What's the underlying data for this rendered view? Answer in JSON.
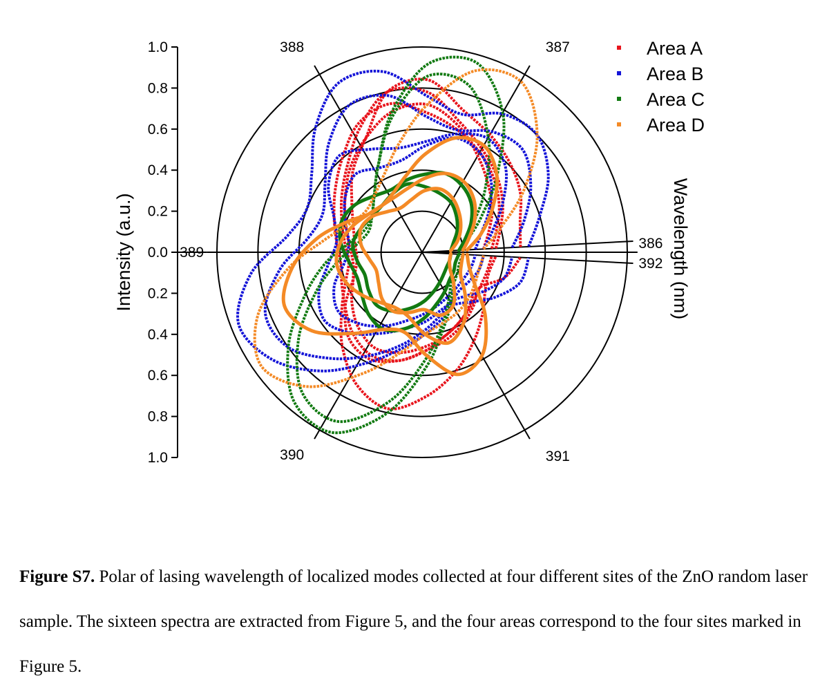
{
  "chart_data": {
    "type": "polar-line",
    "radial_axis": {
      "label": "Intensity (a.u.)",
      "range": [
        0,
        1.0
      ],
      "ticks": [
        "1.0",
        "0.8",
        "0.6",
        "0.4",
        "0.2",
        "0.0",
        "0.2",
        "0.4",
        "0.6",
        "0.8",
        "1.0"
      ],
      "rings": [
        0.2,
        0.4,
        0.6,
        0.8,
        1.0
      ]
    },
    "angular_axis": {
      "label": "Wavelength (nm)",
      "range_nm": [
        386,
        392
      ],
      "spokes": [
        {
          "label": "386",
          "angle_deg": 3
        },
        {
          "label": "387",
          "angle_deg": 60
        },
        {
          "label": "388",
          "angle_deg": 120
        },
        {
          "label": "389",
          "angle_deg": 180
        },
        {
          "label": "390",
          "angle_deg": 240
        },
        {
          "label": "391",
          "angle_deg": 300
        },
        {
          "label": "392",
          "angle_deg": 357
        }
      ]
    },
    "legend": {
      "placement": "top-right",
      "entries": [
        {
          "name": "Area A",
          "color": "#e8141c"
        },
        {
          "name": "Area B",
          "color": "#1414d8"
        },
        {
          "name": "Area C",
          "color": "#127a12"
        },
        {
          "name": "Area D",
          "color": "#f48a26"
        }
      ]
    },
    "series": [
      {
        "area": "Area A",
        "color": "#e8141c",
        "style": "dotted",
        "r": [
          0.48,
          0.5,
          0.56,
          0.61,
          0.66,
          0.72,
          0.84,
          0.8,
          0.62,
          0.52,
          0.42,
          0.36,
          0.33,
          0.32,
          0.36,
          0.46,
          0.55,
          0.58,
          0.54,
          0.48,
          0.44,
          0.4,
          0.36,
          0.33,
          0.42,
          0.48
        ]
      },
      {
        "area": "Area A",
        "color": "#e8141c",
        "style": "dotted",
        "r": [
          0.36,
          0.4,
          0.46,
          0.52,
          0.58,
          0.66,
          0.78,
          0.8,
          0.68,
          0.56,
          0.48,
          0.42,
          0.38,
          0.36,
          0.4,
          0.48,
          0.6,
          0.72,
          0.78,
          0.7,
          0.6,
          0.5,
          0.42,
          0.36,
          0.34,
          0.36
        ]
      },
      {
        "area": "Area A",
        "color": "#e8141c",
        "style": "dotted",
        "r": [
          0.3,
          0.34,
          0.4,
          0.46,
          0.54,
          0.64,
          0.72,
          0.7,
          0.62,
          0.54,
          0.46,
          0.4,
          0.36,
          0.34,
          0.36,
          0.42,
          0.48,
          0.52,
          0.5,
          0.46,
          0.42,
          0.38,
          0.34,
          0.3,
          0.29,
          0.3
        ]
      },
      {
        "area": "Area A",
        "color": "#e8141c",
        "style": "dotted",
        "r": [
          0.34,
          0.38,
          0.44,
          0.5,
          0.56,
          0.62,
          0.68,
          0.74,
          0.7,
          0.6,
          0.52,
          0.46,
          0.42,
          0.4,
          0.42,
          0.46,
          0.52,
          0.56,
          0.54,
          0.48,
          0.42,
          0.38,
          0.35,
          0.33,
          0.33,
          0.34
        ]
      },
      {
        "area": "Area B",
        "color": "#1414d8",
        "style": "dotted",
        "r": [
          0.52,
          0.6,
          0.72,
          0.8,
          0.78,
          0.7,
          0.76,
          0.9,
          0.92,
          0.8,
          0.66,
          0.6,
          0.66,
          0.84,
          0.96,
          0.9,
          0.76,
          0.6,
          0.48,
          0.4,
          0.34,
          0.3,
          0.34,
          0.42,
          0.5,
          0.52
        ]
      },
      {
        "area": "Area B",
        "color": "#1414d8",
        "style": "dotted",
        "r": [
          0.44,
          0.52,
          0.62,
          0.7,
          0.68,
          0.62,
          0.66,
          0.78,
          0.8,
          0.7,
          0.58,
          0.52,
          0.56,
          0.7,
          0.82,
          0.8,
          0.68,
          0.56,
          0.46,
          0.38,
          0.32,
          0.28,
          0.3,
          0.36,
          0.42,
          0.44
        ]
      },
      {
        "area": "Area B",
        "color": "#1414d8",
        "style": "dotted",
        "r": [
          0.3,
          0.36,
          0.46,
          0.58,
          0.64,
          0.6,
          0.54,
          0.52,
          0.56,
          0.62,
          0.56,
          0.46,
          0.42,
          0.46,
          0.54,
          0.58,
          0.52,
          0.44,
          0.38,
          0.34,
          0.3,
          0.28,
          0.26,
          0.27,
          0.29,
          0.3
        ]
      },
      {
        "area": "Area B",
        "color": "#1414d8",
        "style": "dotted",
        "r": [
          0.26,
          0.3,
          0.38,
          0.48,
          0.56,
          0.58,
          0.52,
          0.46,
          0.46,
          0.5,
          0.46,
          0.4,
          0.36,
          0.38,
          0.46,
          0.5,
          0.46,
          0.4,
          0.34,
          0.3,
          0.27,
          0.25,
          0.24,
          0.24,
          0.25,
          0.26
        ]
      },
      {
        "area": "Area C",
        "color": "#127a12",
        "style": "dotted",
        "r": [
          0.2,
          0.24,
          0.34,
          0.52,
          0.78,
          0.96,
          0.92,
          0.7,
          0.48,
          0.36,
          0.3,
          0.3,
          0.36,
          0.48,
          0.62,
          0.8,
          0.96,
          0.98,
          0.8,
          0.56,
          0.38,
          0.28,
          0.22,
          0.2,
          0.19,
          0.2
        ]
      },
      {
        "area": "Area C",
        "color": "#127a12",
        "style": "dotted",
        "r": [
          0.18,
          0.22,
          0.3,
          0.44,
          0.64,
          0.84,
          0.86,
          0.68,
          0.48,
          0.36,
          0.3,
          0.28,
          0.32,
          0.42,
          0.56,
          0.74,
          0.9,
          0.92,
          0.74,
          0.52,
          0.36,
          0.26,
          0.2,
          0.18,
          0.17,
          0.18
        ]
      },
      {
        "area": "Area C",
        "color": "#127a12",
        "style": "solid",
        "r": [
          0.18,
          0.22,
          0.28,
          0.34,
          0.38,
          0.4,
          0.38,
          0.36,
          0.34,
          0.36,
          0.4,
          0.42,
          0.4,
          0.36,
          0.34,
          0.36,
          0.4,
          0.42,
          0.38,
          0.32,
          0.26,
          0.22,
          0.19,
          0.18,
          0.17,
          0.18
        ]
      },
      {
        "area": "Area C",
        "color": "#127a12",
        "style": "solid",
        "r": [
          0.14,
          0.16,
          0.2,
          0.24,
          0.28,
          0.3,
          0.32,
          0.34,
          0.32,
          0.3,
          0.3,
          0.32,
          0.34,
          0.32,
          0.3,
          0.32,
          0.34,
          0.32,
          0.28,
          0.24,
          0.2,
          0.17,
          0.15,
          0.14,
          0.14,
          0.14
        ]
      },
      {
        "area": "Area D",
        "color": "#f48a26",
        "style": "dotted",
        "r": [
          0.3,
          0.4,
          0.58,
          0.8,
          0.96,
          0.92,
          0.72,
          0.54,
          0.42,
          0.36,
          0.34,
          0.38,
          0.48,
          0.66,
          0.86,
          0.96,
          0.86,
          0.66,
          0.5,
          0.4,
          0.36,
          0.34,
          0.32,
          0.3,
          0.29,
          0.3
        ]
      },
      {
        "area": "Area D",
        "color": "#f48a26",
        "style": "solid",
        "r": [
          0.22,
          0.3,
          0.4,
          0.52,
          0.6,
          0.58,
          0.48,
          0.38,
          0.32,
          0.3,
          0.32,
          0.4,
          0.52,
          0.64,
          0.72,
          0.66,
          0.52,
          0.42,
          0.4,
          0.5,
          0.62,
          0.58,
          0.44,
          0.3,
          0.24,
          0.22
        ]
      },
      {
        "area": "Area D",
        "color": "#f48a26",
        "style": "solid",
        "r": [
          0.2,
          0.24,
          0.3,
          0.36,
          0.4,
          0.4,
          0.36,
          0.32,
          0.3,
          0.3,
          0.32,
          0.36,
          0.4,
          0.42,
          0.4,
          0.36,
          0.32,
          0.3,
          0.32,
          0.4,
          0.46,
          0.4,
          0.3,
          0.22,
          0.2,
          0.2
        ]
      },
      {
        "area": "Area D",
        "color": "#f48a26",
        "style": "solid",
        "r": [
          0.14,
          0.18,
          0.22,
          0.26,
          0.3,
          0.32,
          0.3,
          0.26,
          0.24,
          0.26,
          0.3,
          0.32,
          0.3,
          0.26,
          0.24,
          0.26,
          0.3,
          0.32,
          0.3,
          0.28,
          0.32,
          0.3,
          0.22,
          0.16,
          0.14,
          0.14
        ]
      }
    ],
    "series_angle_range_deg": [
      3,
      357
    ]
  },
  "caption": {
    "label": "Figure S7.",
    "text": " Polar of lasing wavelength of localized modes collected at four different sites of the ZnO random laser sample. The sixteen spectra are extracted from Figure 5, and the four areas correspond to the four sites marked in Figure 5."
  }
}
